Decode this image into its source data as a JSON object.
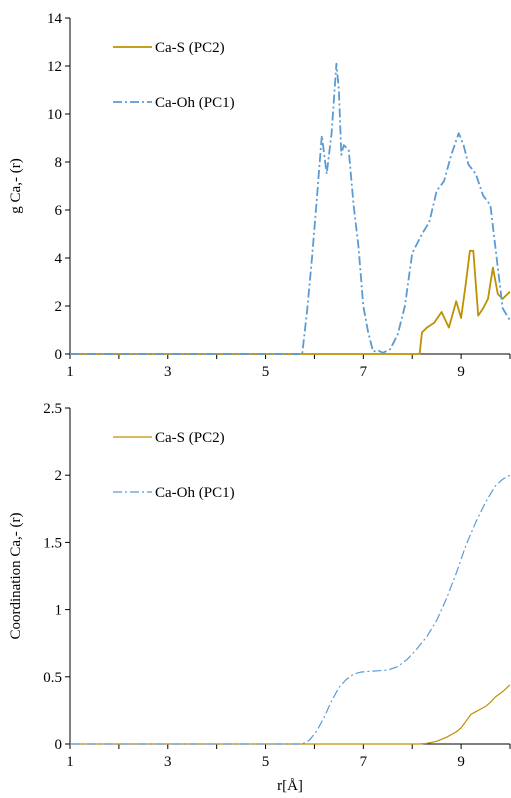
{
  "chart_data": [
    {
      "type": "line",
      "title": "",
      "xlabel": "",
      "ylabel": "g Ca,- (r)",
      "xlim": [
        1,
        10
      ],
      "ylim": [
        0,
        14
      ],
      "xticks": [
        "1",
        "3",
        "5",
        "7",
        "9"
      ],
      "yticks": [
        "0",
        "2",
        "4",
        "6",
        "8",
        "10",
        "12",
        "14"
      ],
      "grid": false,
      "legend": "top-left",
      "series": [
        {
          "name": "Ca-S (PC2)",
          "color": "#bf9000",
          "dash": "solid",
          "x": [
            1.0,
            8.15,
            8.2,
            8.3,
            8.45,
            8.6,
            8.75,
            8.9,
            9.0,
            9.1,
            9.18,
            9.25,
            9.35,
            9.45,
            9.55,
            9.65,
            9.75,
            9.85,
            10.0
          ],
          "y": [
            0.0,
            0.0,
            0.9,
            1.1,
            1.3,
            1.75,
            1.1,
            2.2,
            1.5,
            3.0,
            4.3,
            4.3,
            1.6,
            1.9,
            2.3,
            3.6,
            2.5,
            2.3,
            2.6
          ]
        },
        {
          "name": "Ca-Oh (PC1)",
          "color": "#5b9bd5",
          "dash": "dashdot",
          "x": [
            1.0,
            5.75,
            5.85,
            5.95,
            6.05,
            6.15,
            6.25,
            6.35,
            6.45,
            6.5,
            6.55,
            6.6,
            6.7,
            6.8,
            6.9,
            7.0,
            7.1,
            7.2,
            7.3,
            7.4,
            7.55,
            7.7,
            7.85,
            8.0,
            8.1,
            8.2,
            8.35,
            8.5,
            8.65,
            8.8,
            8.95,
            9.05,
            9.15,
            9.3,
            9.45,
            9.6,
            9.75,
            9.85,
            10.0
          ],
          "y": [
            0.0,
            0.0,
            1.8,
            4.0,
            6.5,
            9.1,
            7.5,
            9.2,
            12.1,
            11.0,
            8.3,
            8.7,
            8.5,
            6.2,
            4.5,
            2.0,
            0.9,
            0.1,
            0.15,
            0.05,
            0.2,
            0.8,
            2.0,
            4.2,
            4.6,
            5.0,
            5.5,
            6.8,
            7.2,
            8.3,
            9.2,
            8.7,
            7.9,
            7.5,
            6.6,
            6.2,
            3.6,
            1.9,
            1.4
          ]
        }
      ]
    },
    {
      "type": "line",
      "title": "",
      "xlabel": "r[Å]",
      "ylabel": "Coordination  Ca,- (r)",
      "xlim": [
        1,
        10
      ],
      "ylim": [
        0,
        2.5
      ],
      "xticks": [
        "1",
        "3",
        "5",
        "7",
        "9"
      ],
      "yticks": [
        "0",
        "0.5",
        "1",
        "1.5",
        "2",
        "2.5"
      ],
      "grid": false,
      "legend": "top-left",
      "series": [
        {
          "name": "Ca-S (PC2)",
          "color": "#bf9000",
          "dash": "solid",
          "x": [
            1.0,
            8.15,
            8.3,
            8.5,
            8.7,
            8.9,
            9.0,
            9.1,
            9.2,
            9.3,
            9.4,
            9.5,
            9.6,
            9.7,
            9.85,
            10.0
          ],
          "y": [
            0.0,
            0.0,
            0.005,
            0.02,
            0.05,
            0.09,
            0.12,
            0.17,
            0.22,
            0.24,
            0.26,
            0.28,
            0.31,
            0.35,
            0.39,
            0.44
          ]
        },
        {
          "name": "Ca-Oh (PC1)",
          "color": "#5b9bd5",
          "dash": "dashdot",
          "x": [
            1.0,
            5.75,
            5.9,
            6.05,
            6.2,
            6.35,
            6.5,
            6.65,
            6.8,
            6.95,
            7.1,
            7.3,
            7.5,
            7.7,
            7.9,
            8.1,
            8.3,
            8.5,
            8.7,
            8.9,
            9.1,
            9.3,
            9.5,
            9.7,
            9.85,
            10.0
          ],
          "y": [
            0.0,
            0.0,
            0.03,
            0.1,
            0.2,
            0.32,
            0.42,
            0.48,
            0.52,
            0.535,
            0.54,
            0.545,
            0.55,
            0.575,
            0.63,
            0.71,
            0.8,
            0.92,
            1.08,
            1.27,
            1.48,
            1.65,
            1.8,
            1.92,
            1.97,
            2.0
          ]
        }
      ]
    }
  ]
}
